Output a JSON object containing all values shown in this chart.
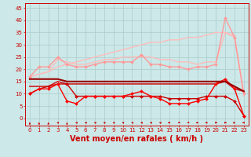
{
  "xlabel": "Vent moyen/en rafales ( km/h )",
  "bg_color": "#cce8e8",
  "grid_color": "#aacccc",
  "x": [
    0,
    1,
    2,
    3,
    4,
    5,
    6,
    7,
    8,
    9,
    10,
    11,
    12,
    13,
    14,
    15,
    16,
    17,
    18,
    19,
    20,
    21,
    22,
    23
  ],
  "ylim": [
    -3,
    47
  ],
  "xlim": [
    -0.5,
    23.5
  ],
  "yticks": [
    0,
    5,
    10,
    15,
    20,
    25,
    30,
    35,
    40,
    45
  ],
  "ytick_labels": [
    "0",
    "5",
    "10",
    "15",
    "20",
    "25",
    "30",
    "35",
    "40",
    "45"
  ],
  "lines": [
    {
      "y": [
        17,
        18,
        19,
        21,
        22,
        23,
        24,
        25,
        26,
        27,
        28,
        29,
        30,
        31,
        31,
        32,
        32,
        33,
        33,
        34,
        35,
        35,
        34,
        9
      ],
      "color": "#ffbbbb",
      "lw": 1.0,
      "marker": null,
      "zorder": 2
    },
    {
      "y": [
        17,
        18,
        19,
        24,
        23,
        22,
        22,
        23,
        24,
        24,
        25,
        25,
        25,
        25,
        24,
        24,
        23,
        23,
        22,
        23,
        23,
        35,
        33,
        10
      ],
      "color": "#ffbbbb",
      "lw": 1.0,
      "marker": null,
      "zorder": 2
    },
    {
      "y": [
        17,
        21,
        21,
        25,
        22,
        21,
        21,
        22,
        23,
        23,
        23,
        23,
        26,
        22,
        22,
        21,
        21,
        20,
        21,
        21,
        22,
        41,
        33,
        10
      ],
      "color": "#ff9999",
      "lw": 1.0,
      "marker": "D",
      "ms": 2.0,
      "zorder": 3
    },
    {
      "y": [
        16,
        16,
        16,
        16,
        15,
        15,
        15,
        15,
        15,
        15,
        15,
        15,
        15,
        15,
        15,
        15,
        15,
        15,
        15,
        15,
        15,
        15,
        13,
        11
      ],
      "color": "#990000",
      "lw": 1.5,
      "marker": null,
      "zorder": 5
    },
    {
      "y": [
        13,
        13,
        13,
        15,
        14,
        14,
        14,
        14,
        14,
        14,
        14,
        14,
        14,
        14,
        14,
        14,
        14,
        14,
        14,
        14,
        14,
        15,
        12,
        11
      ],
      "color": "#cc2222",
      "lw": 1.2,
      "marker": null,
      "zorder": 4
    },
    {
      "y": [
        10,
        12,
        13,
        14,
        14,
        9,
        9,
        9,
        9,
        9,
        9,
        9,
        9,
        9,
        9,
        8,
        8,
        8,
        8,
        9,
        9,
        9,
        7,
        1
      ],
      "color": "#cc0000",
      "lw": 1.0,
      "marker": "D",
      "ms": 2.0,
      "zorder": 4
    },
    {
      "y": [
        10,
        12,
        12,
        14,
        7,
        6,
        9,
        9,
        9,
        9,
        9,
        10,
        11,
        9,
        8,
        6,
        6,
        6,
        7,
        8,
        14,
        16,
        12,
        1
      ],
      "color": "#ff0000",
      "lw": 1.0,
      "marker": "D",
      "ms": 2.0,
      "zorder": 4
    }
  ],
  "wind_dirs": [
    180,
    180,
    180,
    225,
    180,
    225,
    225,
    225,
    225,
    225,
    225,
    225,
    225,
    225,
    225,
    270,
    315,
    315,
    270,
    270,
    90,
    90,
    135,
    270
  ],
  "xlabel_fontsize": 7,
  "tick_fontsize": 5,
  "tick_color": "#cc0000",
  "spine_color": "#cc0000"
}
